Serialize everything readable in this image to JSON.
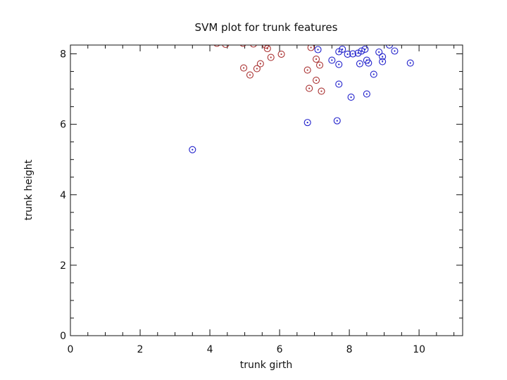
{
  "chart_data": {
    "type": "scatter",
    "title": "SVM plot for trunk features",
    "xlabel": "trunk girth",
    "ylabel": "trunk height",
    "xlim": [
      0,
      11.25
    ],
    "ylim": [
      0,
      8.25
    ],
    "xticks": [
      "0",
      "2",
      "4",
      "6",
      "8",
      "10"
    ],
    "yticks": [
      "0",
      "2",
      "4",
      "6",
      "8"
    ],
    "grid": false,
    "legend": "none",
    "series": [
      {
        "color": "#aa3333",
        "points": [
          [
            4.2,
            8.3
          ],
          [
            4.45,
            8.27
          ],
          [
            4.95,
            8.3
          ],
          [
            5.25,
            8.28
          ],
          [
            5.6,
            8.25
          ],
          [
            5.65,
            8.15
          ],
          [
            5.75,
            7.9
          ],
          [
            6.05,
            7.99
          ],
          [
            5.45,
            7.72
          ],
          [
            5.35,
            7.58
          ],
          [
            4.97,
            7.6
          ],
          [
            5.15,
            7.4
          ],
          [
            6.9,
            8.18
          ],
          [
            7.05,
            7.85
          ],
          [
            7.15,
            7.68
          ],
          [
            6.8,
            7.54
          ],
          [
            7.05,
            7.25
          ],
          [
            6.85,
            7.02
          ],
          [
            7.2,
            6.94
          ]
        ]
      },
      {
        "color": "#2222cc",
        "points": [
          [
            3.5,
            5.28
          ],
          [
            6.8,
            6.05
          ],
          [
            7.65,
            6.1
          ],
          [
            8.05,
            6.77
          ],
          [
            8.5,
            6.86
          ],
          [
            7.7,
            7.14
          ],
          [
            8.7,
            7.42
          ],
          [
            7.5,
            7.82
          ],
          [
            7.7,
            7.7
          ],
          [
            7.1,
            8.12
          ],
          [
            7.7,
            8.06
          ],
          [
            7.8,
            8.13
          ],
          [
            7.95,
            7.99
          ],
          [
            8.1,
            8.0
          ],
          [
            8.25,
            8.02
          ],
          [
            8.35,
            8.08
          ],
          [
            8.45,
            8.13
          ],
          [
            8.3,
            7.72
          ],
          [
            8.5,
            7.82
          ],
          [
            8.55,
            7.74
          ],
          [
            8.85,
            8.05
          ],
          [
            8.95,
            7.92
          ],
          [
            8.95,
            7.78
          ],
          [
            9.15,
            8.25
          ],
          [
            9.3,
            8.08
          ],
          [
            9.75,
            7.74
          ]
        ]
      }
    ]
  }
}
